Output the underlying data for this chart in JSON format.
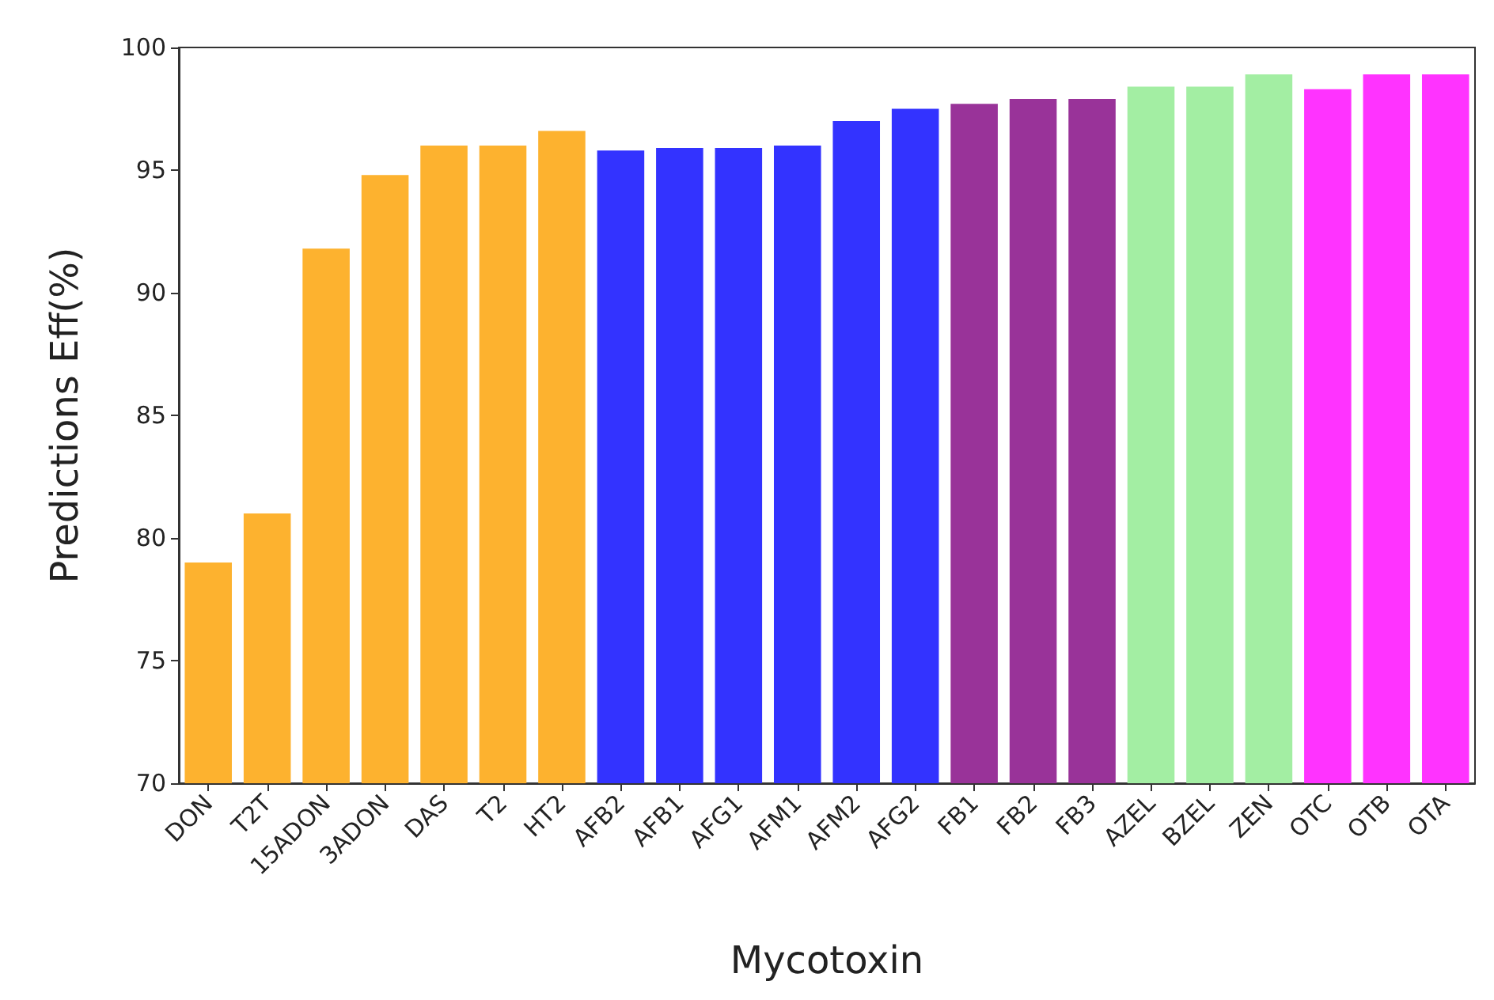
{
  "chart_data": {
    "type": "bar",
    "xlabel": "Mycotoxin",
    "ylabel": "Predictions Eff(%)",
    "categories": [
      "DON",
      "T2T",
      "15ADON",
      "3ADON",
      "DAS",
      "T2",
      "HT2",
      "AFB2",
      "AFB1",
      "AFG1",
      "AFM1",
      "AFM2",
      "AFG2",
      "FB1",
      "FB2",
      "FB3",
      "AZEL",
      "BZEL",
      "ZEN",
      "OTC",
      "OTB",
      "OTA"
    ],
    "values": [
      79.0,
      81.0,
      91.8,
      94.8,
      96.0,
      96.0,
      96.6,
      95.8,
      95.9,
      95.9,
      96.0,
      97.0,
      97.5,
      97.7,
      97.9,
      97.9,
      98.4,
      98.4,
      98.9,
      98.3,
      98.9,
      98.9
    ],
    "colors": [
      "#fdb22f",
      "#fdb22f",
      "#fdb22f",
      "#fdb22f",
      "#fdb22f",
      "#fdb22f",
      "#fdb22f",
      "#3333ff",
      "#3333ff",
      "#3333ff",
      "#3333ff",
      "#3333ff",
      "#3333ff",
      "#993399",
      "#993399",
      "#993399",
      "#a3eea3",
      "#a3eea3",
      "#a3eea3",
      "#ff33ff",
      "#ff33ff",
      "#ff33ff"
    ],
    "ylim": [
      70,
      100
    ],
    "yticks": [
      70,
      75,
      80,
      85,
      90,
      95,
      100
    ]
  }
}
